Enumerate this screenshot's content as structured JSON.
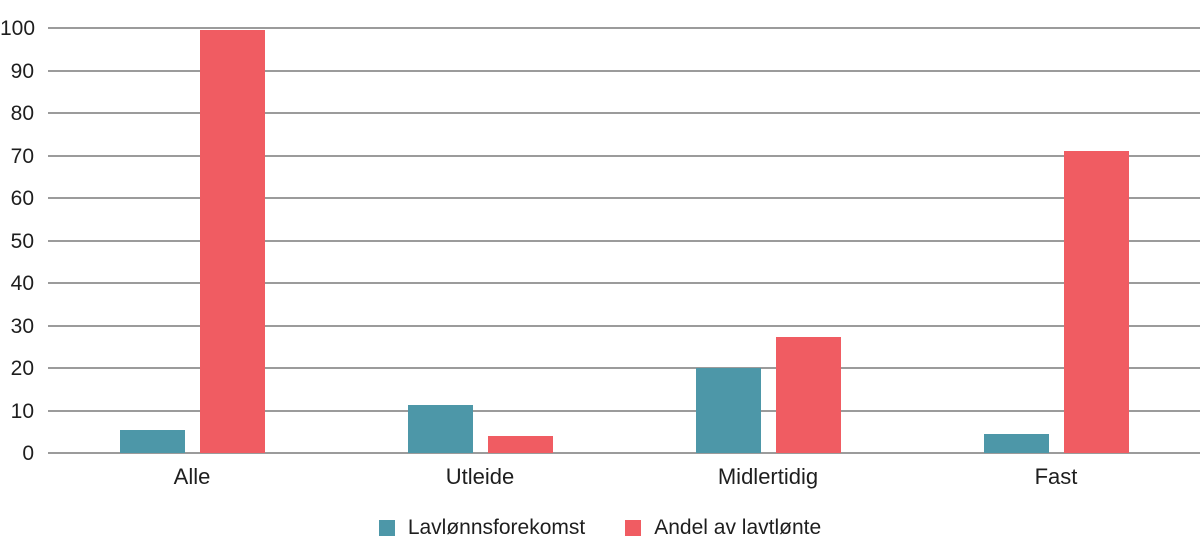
{
  "chart_data": {
    "type": "bar",
    "categories": [
      "Alle",
      "Utleide",
      "Midlertidig",
      "Fast"
    ],
    "series": [
      {
        "name": "Lavlønnsforekomst",
        "color": "#4d97a8",
        "values": [
          5.5,
          11.2,
          20,
          4.5
        ]
      },
      {
        "name": "Andel av lavtlønte",
        "color": "#f05c62",
        "values": [
          99.5,
          4,
          27.3,
          71
        ]
      }
    ],
    "title": "",
    "xlabel": "",
    "ylabel": "",
    "ylim": [
      0,
      100
    ],
    "ytick_step": 10,
    "ytick_labels": [
      "0",
      "10",
      "20",
      "30",
      "40",
      "50",
      "60",
      "70",
      "80",
      "90",
      "100"
    ],
    "grid": true,
    "gridline_color": "#9b9b9b",
    "background_color": "#ffffff",
    "text_color": "#1e1e1e",
    "legend_position": "bottom"
  }
}
